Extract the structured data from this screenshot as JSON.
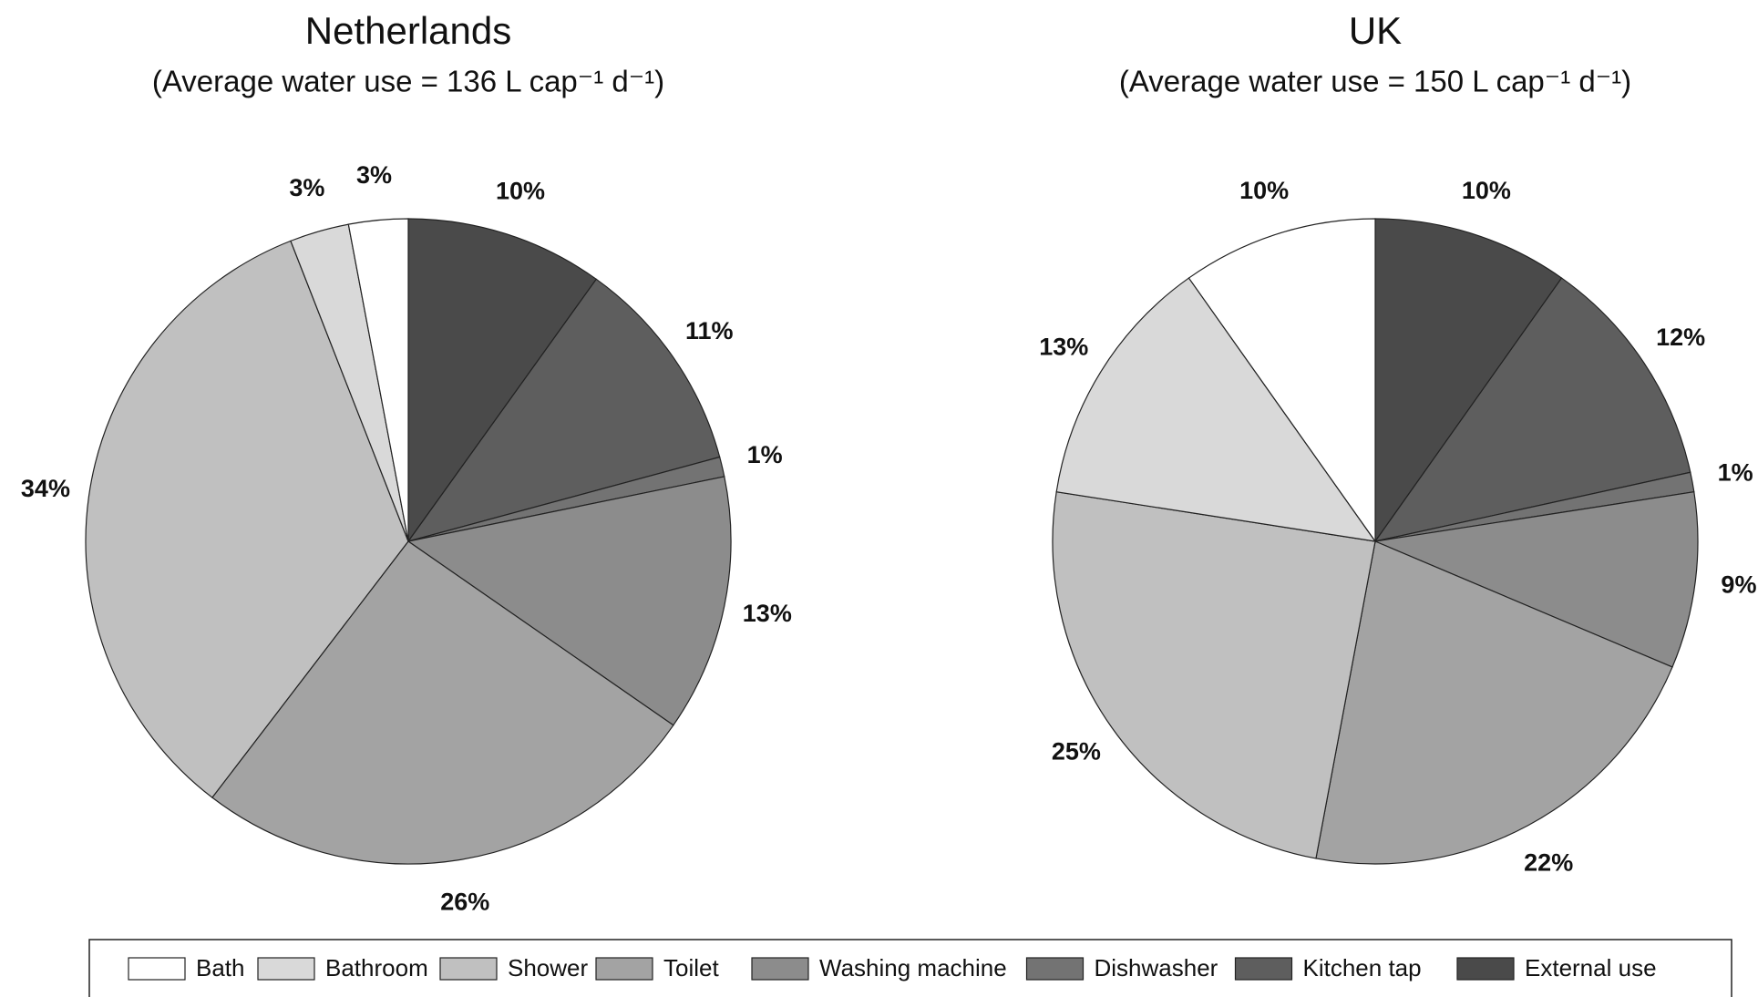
{
  "chart_data": [
    {
      "type": "pie",
      "title": "Netherlands",
      "subtitle": "(Average water use = 136 L cap⁻¹ d⁻¹)",
      "categories": [
        "Bath",
        "Bathroom",
        "Shower",
        "Toilet",
        "Washing machine",
        "Dishwasher",
        "Kitchen tap",
        "External use"
      ],
      "values": [
        3,
        3,
        34,
        26,
        13,
        1,
        11,
        10
      ],
      "value_labels": [
        "3%",
        "3%",
        "34%",
        "26%",
        "13%",
        "1%",
        "11%",
        "10%"
      ],
      "colors": [
        "#ffffff",
        "#d9d9d9",
        "#c0c0c0",
        "#a3a3a3",
        "#8c8c8c",
        "#737373",
        "#5e5e5e",
        "#4a4a4a"
      ]
    },
    {
      "type": "pie",
      "title": "UK",
      "subtitle": "(Average water use = 150 L cap⁻¹ d⁻¹)",
      "categories": [
        "Bath",
        "Bathroom",
        "Shower",
        "Toilet",
        "Washing machine",
        "Dishwasher",
        "Kitchen tap",
        "External use"
      ],
      "values": [
        10,
        13,
        25,
        22,
        9,
        1,
        12,
        10
      ],
      "value_labels": [
        "10%",
        "13%",
        "25%",
        "22%",
        "9%",
        "1%",
        "12%",
        "10%"
      ],
      "colors": [
        "#ffffff",
        "#d9d9d9",
        "#c0c0c0",
        "#a3a3a3",
        "#8c8c8c",
        "#737373",
        "#5e5e5e",
        "#4a4a4a"
      ]
    }
  ]
}
